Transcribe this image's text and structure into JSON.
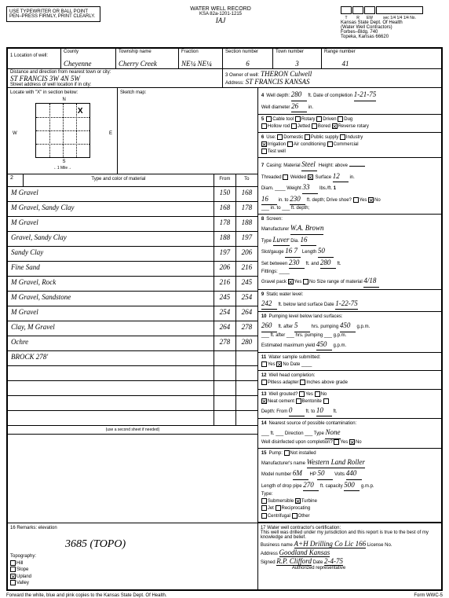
{
  "instructions": "USE TYPEWRITER OR BALL POINT PEN–PRESS FIRMLY, PRINT CLEARLY.",
  "header": {
    "title": "WATER WELL RECORD",
    "subtitle": "KSA 82a-1201-1215",
    "handwritten_mark": "IAJ"
  },
  "trew_labels": [
    "T",
    "R",
    "EW",
    "sec 1/4 1/4 1/4 No."
  ],
  "agency": {
    "line1": "Kansas State Dept. Of Health",
    "line2": "(Water Well Contractors)",
    "line3": "Forbes–Bldg. 740",
    "line4": "Topeka, Kansas 66620"
  },
  "row1": {
    "loc_label": "1 Location of well:",
    "county_label": "County",
    "county": "Cheyenne",
    "township_label": "Township name",
    "township": "Cherry Creek",
    "fraction_label": "Fraction",
    "fraction": "NE¼ NE¼",
    "section_label": "Section number",
    "section": "6",
    "town_label": "Town number",
    "town": "3",
    "range_label": "Range number",
    "range": "41"
  },
  "row2": {
    "dist_label": "Distance and direction from nearest town or city:",
    "dist_value": "ST FRANCIS         3W 4N 5W",
    "street_label": "Street address of well location if in city:",
    "owner_label": "3 Owner of well:",
    "owner": "THERON Culwell",
    "address_label": "Address:",
    "address": "ST FRANCIS KANSAS"
  },
  "locate": {
    "label": "Locate with \"X\" in section below:",
    "sketch_label": "Sketch map:",
    "scale": "←1 Mile→"
  },
  "section2_title": "Type and color of material",
  "strata": [
    {
      "desc": "M Gravel",
      "from": "150",
      "to": "168"
    },
    {
      "desc": "M Gravel, Sandy Clay",
      "from": "168",
      "to": "178"
    },
    {
      "desc": "M Gravel",
      "from": "178",
      "to": "188"
    },
    {
      "desc": "Gravel, Sandy Clay",
      "from": "188",
      "to": "197"
    },
    {
      "desc": "Sandy Clay",
      "from": "197",
      "to": "206"
    },
    {
      "desc": "Fine Sand",
      "from": "206",
      "to": "216"
    },
    {
      "desc": "M Gravel, Rock",
      "from": "216",
      "to": "245"
    },
    {
      "desc": "M Gravel, Sandstone",
      "from": "245",
      "to": "254"
    },
    {
      "desc": "M Gravel",
      "from": "254",
      "to": "264"
    },
    {
      "desc": "Clay, M Gravel",
      "from": "264",
      "to": "278"
    },
    {
      "desc": "Ochre",
      "from": "278",
      "to": "280"
    },
    {
      "desc": "BROCK 278'",
      "from": "",
      "to": ""
    },
    {
      "desc": "",
      "from": "",
      "to": ""
    },
    {
      "desc": "",
      "from": "",
      "to": ""
    },
    {
      "desc": "",
      "from": "",
      "to": ""
    },
    {
      "desc": "",
      "from": "",
      "to": ""
    }
  ],
  "use_second": "(use a second sheet if needed)",
  "s4": {
    "depth": "280",
    "diam": "26",
    "date": "1-21-75"
  },
  "s7": {
    "material": "Steel",
    "surface": "12",
    "diam": "",
    "weight": "33",
    "to_depth": "230",
    "in1": "16"
  },
  "s8": {
    "mfr": "W.A. Brown",
    "type": "Luver",
    "dia": "16",
    "slot": "16 7",
    "length": "50",
    "between1": "230",
    "between2": "280"
  },
  "s9": {
    "level": "242",
    "date": "1-22-75"
  },
  "s10": {
    "level": "260",
    "hrs": "5",
    "pump": "450",
    "max": "450"
  },
  "s13": {
    "from": "0",
    "to": "10"
  },
  "s14": {
    "type": "None"
  },
  "s15": {
    "mfr": "Western Land Roller",
    "model": "6M",
    "hp": "50",
    "volts": "440",
    "pipe": "270",
    "cap": "500"
  },
  "remarks": {
    "label": "16 Remarks: elevation",
    "signature": "3685 (TOPO)"
  },
  "s17": {
    "label": "17 Water well contractor's certification:",
    "text": "This well was drilled under my jurisdiction and this report is true to the best of my knowledge and belief.",
    "business": "A+H Drilling Co Lic 166",
    "address": "Goodland Kansas",
    "signed": "R.P. Clifford",
    "date": "2-4-75"
  },
  "footer": {
    "left": "Forward the white, blue and pink copies to the Kansas State Dept. Of Health.",
    "right": "Form WWC-5"
  }
}
